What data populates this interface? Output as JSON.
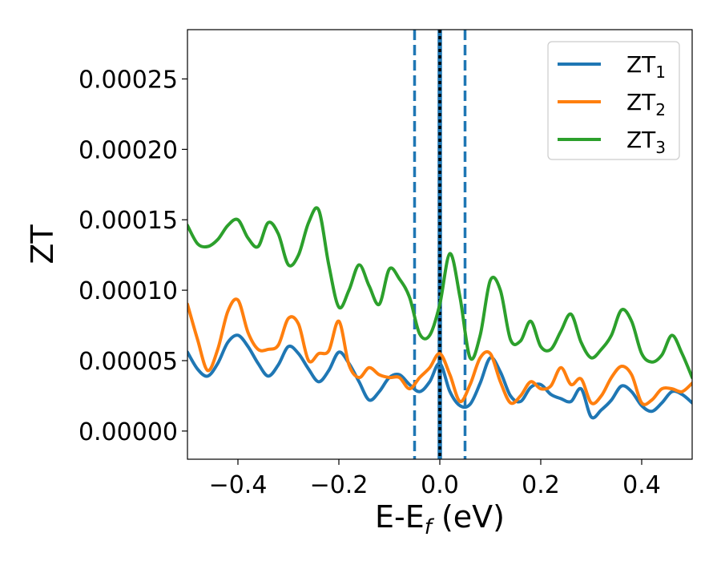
{
  "chart_data": {
    "type": "line",
    "xlabel": "E-E",
    "xlabel_sub": "f",
    "xlabel_unit": " (eV)",
    "ylabel": "ZT",
    "xlim": [
      -0.5,
      0.5
    ],
    "ylim": [
      -2e-05,
      0.000285
    ],
    "xticks": [
      -0.4,
      -0.2,
      0.0,
      0.2,
      0.4
    ],
    "xtick_labels": [
      "−0.4",
      "−0.2",
      "0.0",
      "0.2",
      "0.4"
    ],
    "yticks": [
      0,
      5e-05,
      0.0001,
      0.00015,
      0.0002,
      0.00025
    ],
    "ytick_labels": [
      "0.00000",
      "0.00005",
      "0.00010",
      "0.00015",
      "0.00020",
      "0.00025"
    ],
    "legend_position": "top-right",
    "grid": false,
    "vlines": [
      {
        "x": -0.05,
        "style": "dashed",
        "color": "#1f77b4"
      },
      {
        "x": 0.0,
        "style": "solid",
        "color": "#1f77b4"
      },
      {
        "x": 0.0,
        "style": "dotted",
        "color": "#000000"
      },
      {
        "x": 0.05,
        "style": "dashed",
        "color": "#1f77b4"
      }
    ],
    "series": [
      {
        "name": "ZT",
        "sub": "1",
        "color": "#1f77b4",
        "x": [
          -0.5,
          -0.48,
          -0.46,
          -0.44,
          -0.42,
          -0.4,
          -0.38,
          -0.36,
          -0.34,
          -0.32,
          -0.3,
          -0.28,
          -0.26,
          -0.24,
          -0.22,
          -0.2,
          -0.18,
          -0.16,
          -0.14,
          -0.12,
          -0.1,
          -0.08,
          -0.06,
          -0.04,
          -0.02,
          0.0,
          0.02,
          0.04,
          0.06,
          0.08,
          0.1,
          0.12,
          0.14,
          0.16,
          0.18,
          0.2,
          0.22,
          0.24,
          0.26,
          0.28,
          0.3,
          0.32,
          0.34,
          0.36,
          0.38,
          0.4,
          0.42,
          0.44,
          0.46,
          0.48,
          0.5
        ],
        "y": [
          5.6e-05,
          4.4e-05,
          3.9e-05,
          4.8e-05,
          6.3e-05,
          6.8e-05,
          6e-05,
          4.8e-05,
          3.9e-05,
          4.7e-05,
          6e-05,
          5.5e-05,
          4.4e-05,
          3.5e-05,
          4.3e-05,
          5.6e-05,
          4.8e-05,
          3.5e-05,
          2.2e-05,
          2.8e-05,
          3.8e-05,
          4e-05,
          3.3e-05,
          2.8e-05,
          3.5e-05,
          4.8e-05,
          2.8e-05,
          1.8e-05,
          1.9e-05,
          3.4e-05,
          5.2e-05,
          4.2e-05,
          2.5e-05,
          2.1e-05,
          3.1e-05,
          3.3e-05,
          2.6e-05,
          2.3e-05,
          2.1e-05,
          3e-05,
          1e-05,
          1.5e-05,
          2.2e-05,
          3.2e-05,
          2.8e-05,
          1.8e-05,
          1.4e-05,
          2e-05,
          2.8e-05,
          2.6e-05,
          2e-05
        ]
      },
      {
        "name": "ZT",
        "sub": "2",
        "color": "#ff7f0e",
        "x": [
          -0.5,
          -0.48,
          -0.46,
          -0.44,
          -0.42,
          -0.4,
          -0.38,
          -0.36,
          -0.34,
          -0.32,
          -0.3,
          -0.28,
          -0.26,
          -0.24,
          -0.22,
          -0.2,
          -0.18,
          -0.16,
          -0.14,
          -0.12,
          -0.1,
          -0.08,
          -0.06,
          -0.04,
          -0.02,
          0.0,
          0.02,
          0.04,
          0.06,
          0.08,
          0.1,
          0.12,
          0.14,
          0.16,
          0.18,
          0.2,
          0.22,
          0.24,
          0.26,
          0.28,
          0.3,
          0.32,
          0.34,
          0.36,
          0.38,
          0.4,
          0.42,
          0.44,
          0.46,
          0.48,
          0.5
        ],
        "y": [
          9e-05,
          6.5e-05,
          4.3e-05,
          5.8e-05,
          8.5e-05,
          9.3e-05,
          7e-05,
          5.8e-05,
          5.8e-05,
          6.1e-05,
          8e-05,
          7.6e-05,
          5e-05,
          5.5e-05,
          5.7e-05,
          7.8e-05,
          4.7e-05,
          3.8e-05,
          4.5e-05,
          4e-05,
          3.8e-05,
          3.8e-05,
          3e-05,
          3.8e-05,
          4.5e-05,
          5.5e-05,
          4e-05,
          2.1e-05,
          3.3e-05,
          5.2e-05,
          5.5e-05,
          3.5e-05,
          2e-05,
          2.5e-05,
          3.5e-05,
          3e-05,
          3.2e-05,
          4.5e-05,
          3.3e-05,
          3.7e-05,
          2e-05,
          2.5e-05,
          3.8e-05,
          4.6e-05,
          4e-05,
          2e-05,
          2.2e-05,
          3e-05,
          3e-05,
          2.8e-05,
          3.4e-05
        ]
      },
      {
        "name": "ZT",
        "sub": "3",
        "color": "#2ca02c",
        "x": [
          -0.5,
          -0.48,
          -0.46,
          -0.44,
          -0.42,
          -0.4,
          -0.38,
          -0.36,
          -0.34,
          -0.32,
          -0.3,
          -0.28,
          -0.26,
          -0.24,
          -0.22,
          -0.2,
          -0.18,
          -0.16,
          -0.14,
          -0.12,
          -0.1,
          -0.08,
          -0.06,
          -0.04,
          -0.02,
          0.0,
          0.02,
          0.04,
          0.06,
          0.08,
          0.1,
          0.12,
          0.14,
          0.16,
          0.18,
          0.2,
          0.22,
          0.24,
          0.26,
          0.28,
          0.3,
          0.32,
          0.34,
          0.36,
          0.38,
          0.4,
          0.42,
          0.44,
          0.46,
          0.48,
          0.5
        ],
        "y": [
          0.000146,
          0.000133,
          0.000131,
          0.000136,
          0.000146,
          0.00015,
          0.000137,
          0.000131,
          0.000148,
          0.00014,
          0.000118,
          0.000125,
          0.000148,
          0.000157,
          0.000118,
          8.8e-05,
          0.0001,
          0.000118,
          0.000103,
          9e-05,
          0.000115,
          0.000108,
          9.5e-05,
          6.9e-05,
          6.8e-05,
          9e-05,
          0.000126,
          9.5e-05,
          5.2e-05,
          6.8e-05,
          0.000107,
          0.0001,
          6.5e-05,
          6.4e-05,
          7.8e-05,
          6e-05,
          5.8e-05,
          7.1e-05,
          8.3e-05,
          6.3e-05,
          5.2e-05,
          5.8e-05,
          6.8e-05,
          8.6e-05,
          7.8e-05,
          5.5e-05,
          4.9e-05,
          5.4e-05,
          6.8e-05,
          5.5e-05,
          3.8e-05
        ]
      }
    ]
  }
}
